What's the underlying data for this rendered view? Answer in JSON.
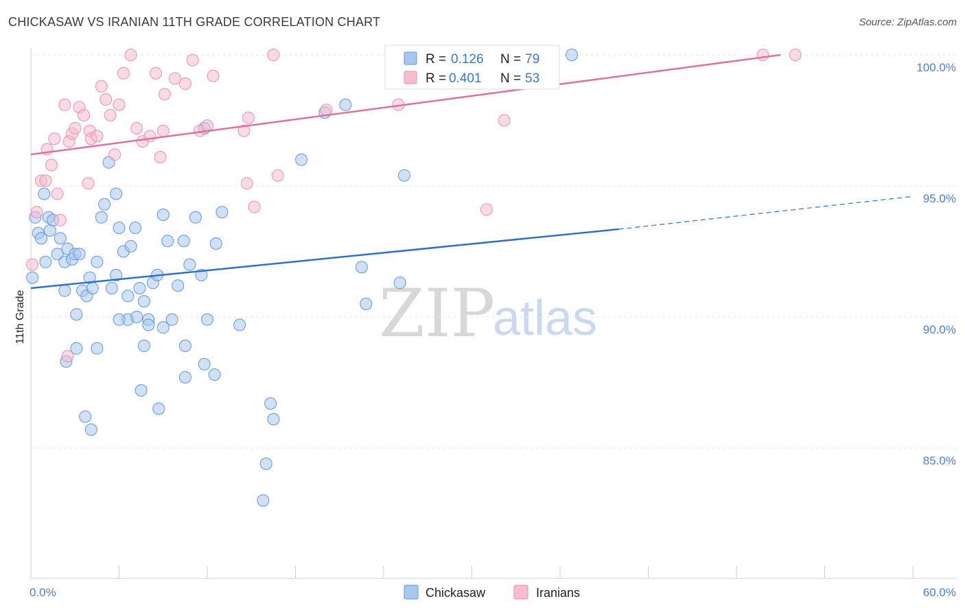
{
  "title": "CHICKASAW VS IRANIAN 11TH GRADE CORRELATION CHART",
  "source": "Source: ZipAtlas.com",
  "watermark": {
    "zip": "ZIP",
    "atlas": "atlas"
  },
  "colors": {
    "chickasaw_fill": "#a9c8f0",
    "chickasaw_stroke": "#5f96d8",
    "chickasaw_line": "#2f70cc",
    "iranians_fill": "#f6bcd0",
    "iranians_stroke": "#e890b0",
    "iranians_line": "#e0709a",
    "tick_label": "#4f7fd0",
    "grid": "#e3e3e3"
  },
  "legend": {
    "rows": [
      {
        "r_label": "R = ",
        "r_value": "0.126",
        "n_label": "N = ",
        "n_value": "79"
      },
      {
        "r_label": "R = ",
        "r_value": "0.401",
        "n_label": "N = ",
        "n_value": "53"
      }
    ]
  },
  "chart_data": {
    "type": "scatter",
    "title": "CHICKASAW VS IRANIAN 11TH GRADE CORRELATION CHART",
    "xlabel": "",
    "ylabel": "11th Grade",
    "xlim": [
      0,
      60
    ],
    "ylim": [
      80.5,
      100.7
    ],
    "x_tick_labels": [
      "0.0%",
      "60.0%"
    ],
    "y_ticks": [
      85,
      90,
      95,
      100
    ],
    "y_tick_labels": [
      "85.0%",
      "90.0%",
      "95.0%",
      "100.0%"
    ],
    "grid": true,
    "legend_position": "top-center",
    "series": [
      {
        "name": "Chickasaw",
        "trend": {
          "x": [
            0,
            40
          ],
          "y": [
            91.1,
            93.35
          ],
          "dashed_extension_to": [
            60,
            94.6
          ]
        },
        "points": [
          [
            0.1,
            91.5
          ],
          [
            0.3,
            93.8
          ],
          [
            0.5,
            93.2
          ],
          [
            0.7,
            93.0
          ],
          [
            0.9,
            94.7
          ],
          [
            1.0,
            92.1
          ],
          [
            1.2,
            93.8
          ],
          [
            1.3,
            93.3
          ],
          [
            1.5,
            93.7
          ],
          [
            1.8,
            92.4
          ],
          [
            2.0,
            93.0
          ],
          [
            2.3,
            92.1
          ],
          [
            2.5,
            92.6
          ],
          [
            2.8,
            92.2
          ],
          [
            3.0,
            92.4
          ],
          [
            3.3,
            92.4
          ],
          [
            3.5,
            91.0
          ],
          [
            3.8,
            90.8
          ],
          [
            4.0,
            91.5
          ],
          [
            4.2,
            91.1
          ],
          [
            4.5,
            92.1
          ],
          [
            4.8,
            93.8
          ],
          [
            5.0,
            94.3
          ],
          [
            5.3,
            95.9
          ],
          [
            5.5,
            91.1
          ],
          [
            5.8,
            91.6
          ],
          [
            6.0,
            93.4
          ],
          [
            6.3,
            92.5
          ],
          [
            6.6,
            90.8
          ],
          [
            6.8,
            92.7
          ],
          [
            7.1,
            93.4
          ],
          [
            7.4,
            91.1
          ],
          [
            7.7,
            90.6
          ],
          [
            8.0,
            89.9
          ],
          [
            8.3,
            91.3
          ],
          [
            8.6,
            91.6
          ],
          [
            9.0,
            93.9
          ],
          [
            9.3,
            92.9
          ],
          [
            9.6,
            89.9
          ],
          [
            10.0,
            91.2
          ],
          [
            10.4,
            92.9
          ],
          [
            10.8,
            92.0
          ],
          [
            11.2,
            93.8
          ],
          [
            11.6,
            91.6
          ],
          [
            12.0,
            89.9
          ],
          [
            12.6,
            92.8
          ],
          [
            13.0,
            94.0
          ],
          [
            14.2,
            89.7
          ],
          [
            7.7,
            88.9
          ],
          [
            9.0,
            89.6
          ],
          [
            10.5,
            88.9
          ],
          [
            2.4,
            88.3
          ],
          [
            3.1,
            88.8
          ],
          [
            4.5,
            88.8
          ],
          [
            11.8,
            88.2
          ],
          [
            12.5,
            87.8
          ],
          [
            10.5,
            87.7
          ],
          [
            7.5,
            87.2
          ],
          [
            8.7,
            86.5
          ],
          [
            16.3,
            86.7
          ],
          [
            16.5,
            86.1
          ],
          [
            3.7,
            86.2
          ],
          [
            4.1,
            85.7
          ],
          [
            16.0,
            84.4
          ],
          [
            15.8,
            83.0
          ],
          [
            6.6,
            89.9
          ],
          [
            7.2,
            90.0
          ],
          [
            8.0,
            89.7
          ],
          [
            6.0,
            89.9
          ],
          [
            3.1,
            90.1
          ],
          [
            2.3,
            91.0
          ],
          [
            5.8,
            94.7
          ],
          [
            11.8,
            97.2
          ],
          [
            18.4,
            96.0
          ],
          [
            20.0,
            97.8
          ],
          [
            21.4,
            98.1
          ],
          [
            25.4,
            95.4
          ],
          [
            22.5,
            91.9
          ],
          [
            22.8,
            90.5
          ],
          [
            25.1,
            91.3
          ],
          [
            36.8,
            100.0
          ]
        ]
      },
      {
        "name": "Iranians",
        "trend": {
          "x": [
            0,
            51
          ],
          "y": [
            96.2,
            100.0
          ]
        },
        "points": [
          [
            0.1,
            92.0
          ],
          [
            0.4,
            94.0
          ],
          [
            0.7,
            95.2
          ],
          [
            1.0,
            95.2
          ],
          [
            1.1,
            96.4
          ],
          [
            1.4,
            95.8
          ],
          [
            1.6,
            96.8
          ],
          [
            1.8,
            94.7
          ],
          [
            2.0,
            93.7
          ],
          [
            2.3,
            98.1
          ],
          [
            2.6,
            96.7
          ],
          [
            2.8,
            97.0
          ],
          [
            3.0,
            97.2
          ],
          [
            3.3,
            98.0
          ],
          [
            3.6,
            97.7
          ],
          [
            4.0,
            97.1
          ],
          [
            4.1,
            96.8
          ],
          [
            4.5,
            96.9
          ],
          [
            4.8,
            98.8
          ],
          [
            5.1,
            98.3
          ],
          [
            5.4,
            97.7
          ],
          [
            5.7,
            96.2
          ],
          [
            6.0,
            98.1
          ],
          [
            6.3,
            99.3
          ],
          [
            6.8,
            100.0
          ],
          [
            7.2,
            97.2
          ],
          [
            7.6,
            96.7
          ],
          [
            8.1,
            96.9
          ],
          [
            8.5,
            99.3
          ],
          [
            8.8,
            96.1
          ],
          [
            9.1,
            98.5
          ],
          [
            9.8,
            99.1
          ],
          [
            10.5,
            98.9
          ],
          [
            11.0,
            99.8
          ],
          [
            11.5,
            97.1
          ],
          [
            12.0,
            97.3
          ],
          [
            12.4,
            99.2
          ],
          [
            14.5,
            97.1
          ],
          [
            14.8,
            97.6
          ],
          [
            16.5,
            100.0
          ],
          [
            16.8,
            95.4
          ],
          [
            20.1,
            97.9
          ],
          [
            25.0,
            98.1
          ],
          [
            30.8,
            100.0
          ],
          [
            32.2,
            97.5
          ],
          [
            31.0,
            94.1
          ],
          [
            49.8,
            100.0
          ],
          [
            52.0,
            100.0
          ],
          [
            2.5,
            88.5
          ],
          [
            14.7,
            95.1
          ],
          [
            15.2,
            94.2
          ],
          [
            3.9,
            95.1
          ],
          [
            9.0,
            97.1
          ]
        ]
      }
    ]
  },
  "bottom_legend": {
    "items": [
      {
        "label": "Chickasaw"
      },
      {
        "label": "Iranians"
      }
    ]
  }
}
